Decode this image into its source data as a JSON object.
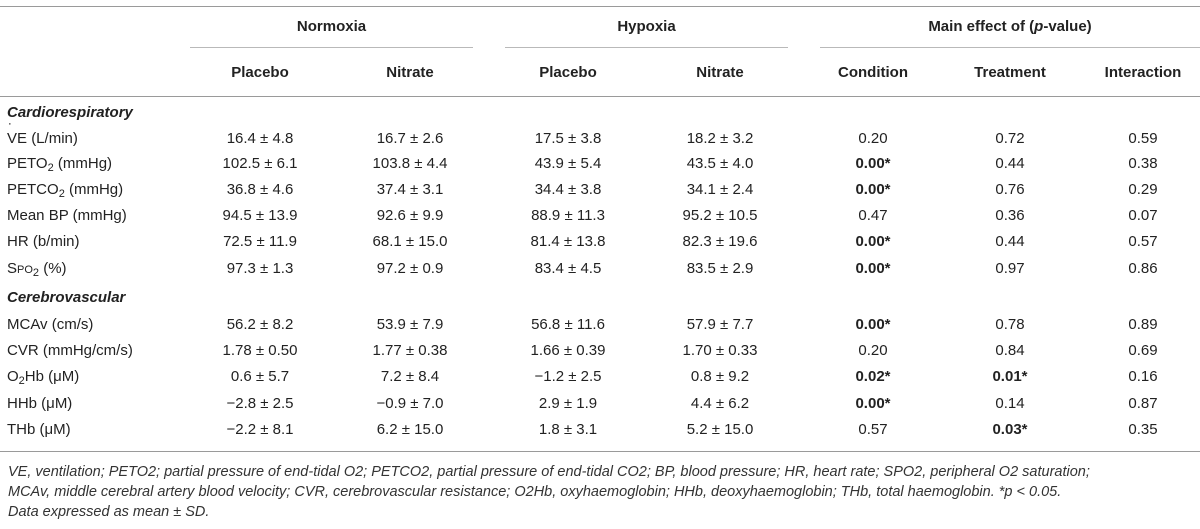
{
  "groups": {
    "normoxia": "Normoxia",
    "hypoxia": "Hypoxia",
    "main_effect_prefix": "Main effect of (",
    "main_effect_italic": "p",
    "main_effect_suffix": "-value)"
  },
  "subheaders": [
    "Placebo",
    "Nitrate",
    "Placebo",
    "Nitrate",
    "Condition",
    "Treatment",
    "Interaction"
  ],
  "sections": {
    "cardio": "Cardiorespiratory",
    "cerebro": "Cerebrovascular"
  },
  "rows": [
    {
      "label_main": "VE (L/min)",
      "cells": [
        "16.4 ± 4.8",
        "16.7 ± 2.6",
        "17.5 ± 3.8",
        "18.2 ± 3.2",
        "0.20",
        "0.72",
        "0.59"
      ],
      "sig": [
        false,
        false,
        false
      ]
    },
    {
      "label_main": "PETO2 (mmHg)",
      "cells": [
        "102.5 ± 6.1",
        "103.8 ± 4.4",
        "43.9 ± 5.4",
        "43.5 ± 4.0",
        "0.00*",
        "0.44",
        "0.38"
      ],
      "sig": [
        true,
        false,
        false
      ]
    },
    {
      "label_main": "PETCO2 (mmHg)",
      "cells": [
        "36.8 ± 4.6",
        "37.4 ± 3.1",
        "34.4 ± 3.8",
        "34.1 ± 2.4",
        "0.00*",
        "0.76",
        "0.29"
      ],
      "sig": [
        true,
        false,
        false
      ]
    },
    {
      "label_main": "Mean BP (mmHg)",
      "cells": [
        "94.5 ± 13.9",
        "92.6 ± 9.9",
        "88.9 ± 11.3",
        "95.2 ± 10.5",
        "0.47",
        "0.36",
        "0.07"
      ],
      "sig": [
        false,
        false,
        false
      ]
    },
    {
      "label_main": "HR (b/min)",
      "cells": [
        "72.5 ± 11.9",
        "68.1 ± 15.0",
        "81.4 ± 13.8",
        "82.3 ± 19.6",
        "0.00*",
        "0.44",
        "0.57"
      ],
      "sig": [
        true,
        false,
        false
      ]
    },
    {
      "label_main": "SpO2 (%)",
      "cells": [
        "97.3 ± 1.3",
        "97.2 ± 0.9",
        "83.4 ± 4.5",
        "83.5 ± 2.9",
        "0.00*",
        "0.97",
        "0.86"
      ],
      "sig": [
        true,
        false,
        false
      ]
    },
    {
      "label_main": "MCAv (cm/s)",
      "cells": [
        "56.2 ± 8.2",
        "53.9 ± 7.9",
        "56.8 ± 11.6",
        "57.9 ± 7.7",
        "0.00*",
        "0.78",
        "0.89"
      ],
      "sig": [
        true,
        false,
        false
      ]
    },
    {
      "label_main": "CVR (mmHg/cm/s)",
      "cells": [
        "1.78 ± 0.50",
        "1.77 ± 0.38",
        "1.66 ± 0.39",
        "1.70 ± 0.33",
        "0.20",
        "0.84",
        "0.69"
      ],
      "sig": [
        false,
        false,
        false
      ]
    },
    {
      "label_main": "O2Hb (μM)",
      "cells": [
        "0.6 ± 5.7",
        "7.2 ± 8.4",
        "−1.2 ± 2.5",
        "0.8 ± 9.2",
        "0.02*",
        "0.01*",
        "0.16"
      ],
      "sig": [
        true,
        true,
        false
      ]
    },
    {
      "label_main": "HHb (μM)",
      "cells": [
        "−2.8 ± 2.5",
        "−0.9 ± 7.0",
        "2.9 ± 1.9",
        "4.4 ± 6.2",
        "0.00*",
        "0.14",
        "0.87"
      ],
      "sig": [
        true,
        false,
        false
      ]
    },
    {
      "label_main": "THb (μM)",
      "cells": [
        "−2.2 ± 8.1",
        "6.2 ± 15.0",
        "1.8 ± 3.1",
        "5.2 ± 15.0",
        "0.57",
        "0.03*",
        "0.35"
      ],
      "sig": [
        false,
        true,
        false
      ]
    }
  ],
  "footnote": {
    "line1": "VE, ventilation; PETO2; partial pressure of end-tidal O2; PETCO2, partial pressure of end-tidal CO2; BP, blood pressure; HR, heart rate; SPO2, peripheral O2 saturation;",
    "line2": "MCAv, middle cerebral artery blood velocity; CVR, cerebrovascular resistance; O2Hb, oxyhaemoglobin; HHb, deoxyhaemoglobin; THb, total haemoglobin. *p < 0.05.",
    "line3": "Data expressed as mean ± SD."
  }
}
